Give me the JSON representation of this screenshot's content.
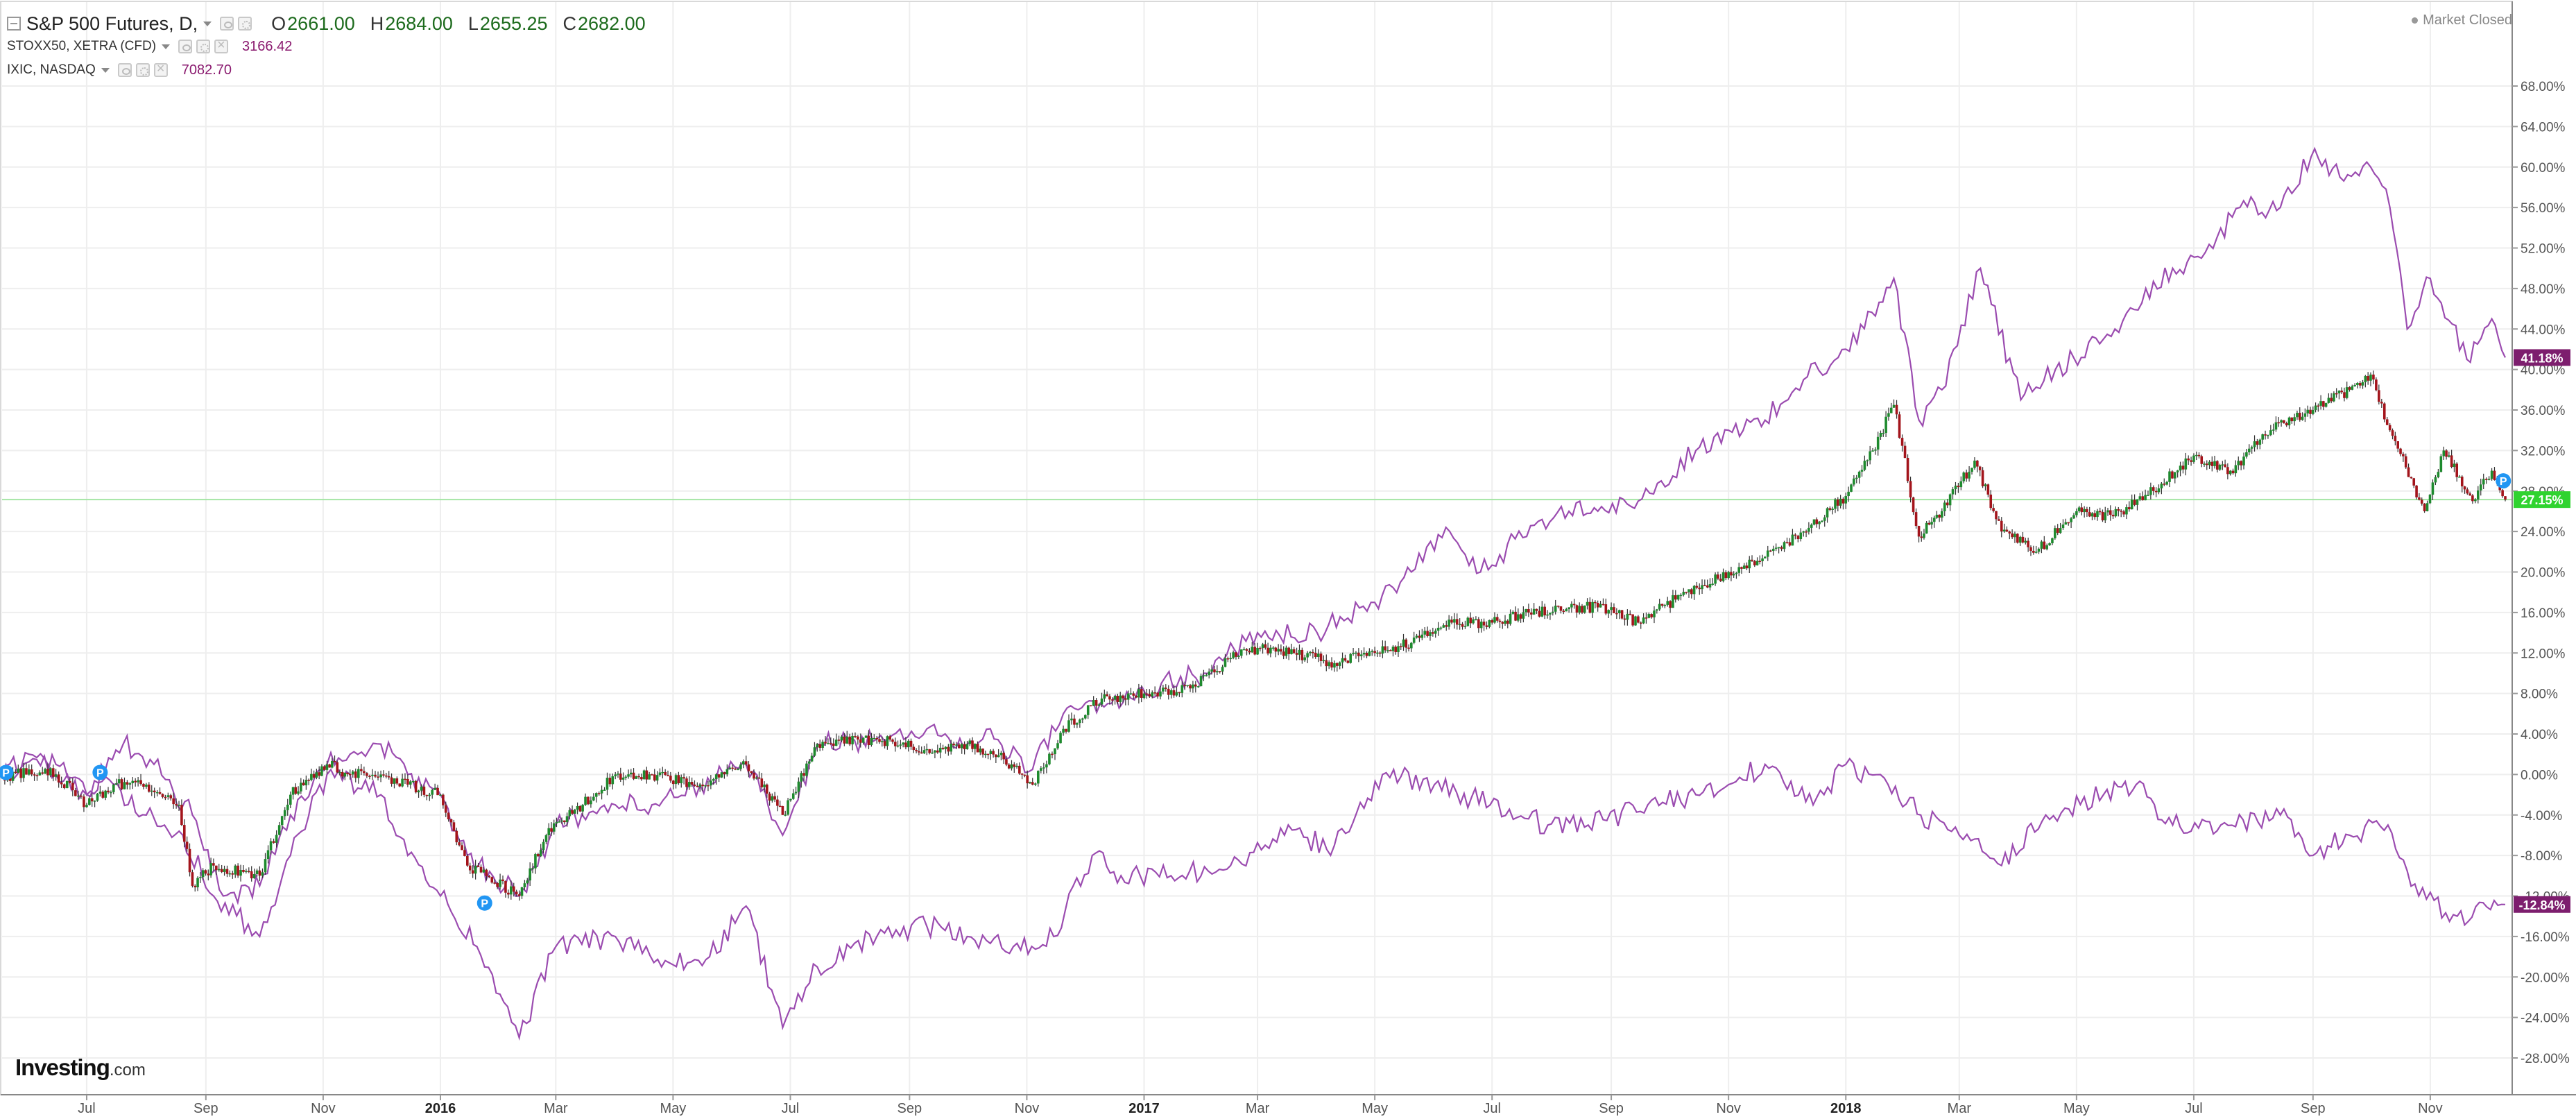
{
  "header": {
    "title": "S&P 500 Futures, D,",
    "open_label": "O",
    "open": "2661.00",
    "high_label": "H",
    "high": "2684.00",
    "low_label": "L",
    "low": "2655.25",
    "close_label": "C",
    "close": "2682.00"
  },
  "compare": [
    {
      "name": "STOXX50, XETRA (CFD)",
      "value": "3166.42"
    },
    {
      "name": "IXIC, NASDAQ",
      "value": "7082.70"
    }
  ],
  "status": {
    "market": "Market Closed"
  },
  "brand": {
    "name": "Investing",
    "suffix": ".com"
  },
  "colors": {
    "up": "#1e8a2e",
    "down": "#a3141b",
    "compare_line": "#9b4cb0",
    "ref_line": "#a4e6a4",
    "badge_green": "#2fd32f",
    "badge_purple": "#7d1e6e",
    "marker": "#2196f3",
    "grid": "#eeeeee",
    "axis_text": "#555555"
  },
  "icons": [
    "collapse-icon",
    "caret-down-icon",
    "eye-icon",
    "gear-icon",
    "close-icon",
    "status-dot-icon",
    "p-marker-icon"
  ],
  "chart_data": {
    "type": "line",
    "series_types": {
      "main": "candlestick",
      "compare": "line"
    },
    "y_axis": {
      "unit": "%",
      "range": [
        -30,
        70
      ],
      "ticks": [
        68,
        64,
        60,
        56,
        52,
        48,
        44,
        40,
        36,
        32,
        28,
        24,
        20,
        16,
        12,
        8,
        4,
        0,
        -4,
        -8,
        -12,
        -16,
        -20,
        -24,
        -28
      ],
      "tick_labels": [
        "68.00%",
        "64.00%",
        "60.00%",
        "56.00%",
        "52.00%",
        "48.00%",
        "44.00%",
        "40.00%",
        "36.00%",
        "32.00%",
        "28.00%",
        "24.00%",
        "20.00%",
        "16.00%",
        "12.00%",
        "8.00%",
        "4.00%",
        "0.00%",
        "-4.00%",
        "-8.00%",
        "-12.00%",
        "-16.00%",
        "-20.00%",
        "-24.00%",
        "-28.00%"
      ]
    },
    "x_axis": {
      "range": [
        "2015-05-18",
        "2018-12-10"
      ],
      "ticks": [
        {
          "date": "2015-07-01",
          "label": "Jul",
          "bold": false
        },
        {
          "date": "2015-09-01",
          "label": "Sep",
          "bold": false
        },
        {
          "date": "2015-11-01",
          "label": "Nov",
          "bold": false
        },
        {
          "date": "2016-01-01",
          "label": "2016",
          "bold": true
        },
        {
          "date": "2016-03-01",
          "label": "Mar",
          "bold": false
        },
        {
          "date": "2016-05-01",
          "label": "May",
          "bold": false
        },
        {
          "date": "2016-07-01",
          "label": "Jul",
          "bold": false
        },
        {
          "date": "2016-09-01",
          "label": "Sep",
          "bold": false
        },
        {
          "date": "2016-11-01",
          "label": "Nov",
          "bold": false
        },
        {
          "date": "2017-01-01",
          "label": "2017",
          "bold": true
        },
        {
          "date": "2017-03-01",
          "label": "Mar",
          "bold": false
        },
        {
          "date": "2017-05-01",
          "label": "May",
          "bold": false
        },
        {
          "date": "2017-07-01",
          "label": "Jul",
          "bold": false
        },
        {
          "date": "2017-09-01",
          "label": "Sep",
          "bold": false
        },
        {
          "date": "2017-11-01",
          "label": "Nov",
          "bold": false
        },
        {
          "date": "2018-01-01",
          "label": "2018",
          "bold": true
        },
        {
          "date": "2018-03-01",
          "label": "Mar",
          "bold": false
        },
        {
          "date": "2018-05-01",
          "label": "May",
          "bold": false
        },
        {
          "date": "2018-07-01",
          "label": "Jul",
          "bold": false
        },
        {
          "date": "2018-09-01",
          "label": "Sep",
          "bold": false
        },
        {
          "date": "2018-11-01",
          "label": "Nov",
          "bold": false
        }
      ]
    },
    "grid": true,
    "reference_line": {
      "value": 27.15,
      "label": "27.15%"
    },
    "badges": [
      {
        "series": "IXIC, NASDAQ",
        "value": 41.18,
        "label": "41.18%"
      },
      {
        "series": "S&P 500 Futures, D,",
        "value": 27.15,
        "label": "27.15%"
      },
      {
        "series": "STOXX50, XETRA (CFD)",
        "value": -12.84,
        "label": "-12.84%"
      }
    ],
    "markers": [
      {
        "date": "2015-05-20",
        "value": 0.2,
        "label": "P"
      },
      {
        "date": "2015-07-08",
        "value": 0.2,
        "label": "P"
      },
      {
        "date": "2016-01-24",
        "value": -12.7,
        "label": "P"
      },
      {
        "date": "2018-12-09",
        "value": 29.0,
        "label": "P"
      }
    ],
    "series": [
      {
        "name": "S&P 500 Futures, D,",
        "kind": "candlestick",
        "x": [
          "2015-05-18",
          "2015-06-01",
          "2015-06-15",
          "2015-07-01",
          "2015-07-15",
          "2015-08-01",
          "2015-08-18",
          "2015-08-25",
          "2015-09-05",
          "2015-09-29",
          "2015-10-15",
          "2015-11-03",
          "2015-11-15",
          "2015-12-01",
          "2015-12-15",
          "2016-01-01",
          "2016-01-15",
          "2016-02-11",
          "2016-02-25",
          "2016-03-15",
          "2016-04-01",
          "2016-04-20",
          "2016-05-15",
          "2016-06-08",
          "2016-06-27",
          "2016-07-15",
          "2016-08-15",
          "2016-09-10",
          "2016-10-01",
          "2016-10-20",
          "2016-11-04",
          "2016-11-20",
          "2016-12-10",
          "2017-01-01",
          "2017-01-25",
          "2017-02-15",
          "2017-03-01",
          "2017-03-20",
          "2017-04-10",
          "2017-05-01",
          "2017-05-20",
          "2017-06-10",
          "2017-07-01",
          "2017-07-20",
          "2017-08-10",
          "2017-08-25",
          "2017-09-15",
          "2017-10-10",
          "2017-11-01",
          "2017-11-20",
          "2017-12-10",
          "2018-01-01",
          "2018-01-15",
          "2018-01-26",
          "2018-02-08",
          "2018-02-20",
          "2018-03-09",
          "2018-03-23",
          "2018-04-10",
          "2018-05-01",
          "2018-05-20",
          "2018-06-10",
          "2018-07-01",
          "2018-07-20",
          "2018-08-10",
          "2018-09-01",
          "2018-09-20",
          "2018-10-01",
          "2018-10-11",
          "2018-10-29",
          "2018-11-08",
          "2018-11-23",
          "2018-12-03",
          "2018-12-10"
        ],
        "y": [
          -0.5,
          0.5,
          0,
          -3,
          -1,
          -1,
          -3,
          -11,
          -9,
          -10,
          -2,
          1,
          0,
          0,
          -1,
          -2,
          -9,
          -12,
          -6,
          -3,
          0,
          0,
          -1,
          1,
          -4,
          3,
          3.5,
          2.5,
          3,
          1.5,
          -1,
          4.5,
          7.5,
          8,
          8.5,
          11.5,
          12.5,
          12,
          11,
          12,
          13,
          15,
          15,
          16,
          16.5,
          16.5,
          15,
          18,
          20,
          21.5,
          24,
          27.5,
          32,
          36.5,
          23.5,
          26,
          31,
          24,
          22,
          26,
          25.5,
          28,
          31.5,
          30,
          34,
          36,
          38,
          39.5,
          34,
          26,
          32,
          27,
          30,
          27.15
        ]
      },
      {
        "name": "STOXX50, XETRA (CFD)",
        "kind": "line",
        "x": [
          "2015-05-18",
          "2015-06-01",
          "2015-06-15",
          "2015-07-01",
          "2015-07-15",
          "2015-08-01",
          "2015-08-20",
          "2015-09-05",
          "2015-09-29",
          "2015-10-15",
          "2015-11-03",
          "2015-12-01",
          "2015-12-15",
          "2016-01-01",
          "2016-01-20",
          "2016-02-11",
          "2016-03-01",
          "2016-04-01",
          "2016-04-25",
          "2016-05-20",
          "2016-06-08",
          "2016-06-27",
          "2016-07-15",
          "2016-08-15",
          "2016-09-10",
          "2016-10-01",
          "2016-10-25",
          "2016-11-15",
          "2016-12-05",
          "2016-12-20",
          "2017-01-15",
          "2017-02-15",
          "2017-03-15",
          "2017-04-10",
          "2017-05-05",
          "2017-06-01",
          "2017-06-30",
          "2017-07-30",
          "2017-08-20",
          "2017-09-20",
          "2017-10-15",
          "2017-11-01",
          "2017-11-20",
          "2017-12-15",
          "2018-01-01",
          "2018-01-23",
          "2018-02-09",
          "2018-03-01",
          "2018-03-23",
          "2018-04-15",
          "2018-05-15",
          "2018-06-01",
          "2018-06-20",
          "2018-07-15",
          "2018-08-15",
          "2018-09-01",
          "2018-09-20",
          "2018-10-10",
          "2018-10-26",
          "2018-11-15",
          "2018-12-10"
        ],
        "y": [
          0,
          2,
          0,
          -2,
          -1,
          -4,
          -6,
          -12,
          -16,
          -8,
          0,
          -2,
          -8,
          -12,
          -17,
          -26,
          -17,
          -16,
          -19,
          -18,
          -13,
          -25,
          -19,
          -16,
          -15,
          -16,
          -17,
          -16,
          -8,
          -10,
          -10,
          -9,
          -6,
          -7,
          0,
          -1,
          -3,
          -5,
          -5,
          -3,
          -2,
          -1,
          1,
          -3,
          1,
          -1,
          -4,
          -6,
          -9,
          -4,
          -2,
          -1,
          -5,
          -5,
          -4,
          -8,
          -6,
          -5,
          -12,
          -14,
          -12.84
        ]
      },
      {
        "name": "IXIC, NASDAQ",
        "kind": "line",
        "x": [
          "2015-05-18",
          "2015-06-15",
          "2015-07-01",
          "2015-07-20",
          "2015-08-05",
          "2015-08-25",
          "2015-09-10",
          "2015-09-29",
          "2015-10-15",
          "2015-11-03",
          "2015-11-15",
          "2015-12-01",
          "2015-12-15",
          "2016-01-01",
          "2016-01-15",
          "2016-02-11",
          "2016-03-01",
          "2016-04-01",
          "2016-04-20",
          "2016-05-15",
          "2016-06-08",
          "2016-06-27",
          "2016-07-15",
          "2016-08-15",
          "2016-09-10",
          "2016-10-01",
          "2016-10-15",
          "2016-11-04",
          "2016-11-20",
          "2016-12-15",
          "2017-01-10",
          "2017-02-01",
          "2017-03-01",
          "2017-04-01",
          "2017-05-01",
          "2017-05-20",
          "2017-06-09",
          "2017-06-25",
          "2017-07-25",
          "2017-08-10",
          "2017-08-25",
          "2017-09-15",
          "2017-10-15",
          "2017-11-01",
          "2017-11-20",
          "2017-12-10",
          "2018-01-01",
          "2018-01-26",
          "2018-02-08",
          "2018-02-20",
          "2018-03-12",
          "2018-04-02",
          "2018-04-20",
          "2018-05-15",
          "2018-06-20",
          "2018-07-05",
          "2018-07-25",
          "2018-08-15",
          "2018-08-31",
          "2018-09-15",
          "2018-10-01",
          "2018-10-11",
          "2018-10-20",
          "2018-11-01",
          "2018-11-20",
          "2018-12-03",
          "2018-12-10"
        ],
        "y": [
          0,
          1,
          -2,
          3,
          1,
          -4,
          -12,
          -11,
          -4,
          1,
          2,
          3,
          0,
          -2,
          -8,
          -12,
          -5,
          -3,
          -3,
          -1,
          1,
          -6,
          3,
          3.5,
          4.5,
          3,
          3.5,
          0.5,
          6,
          7,
          9,
          10,
          14,
          14,
          17,
          20,
          24,
          20,
          25,
          26,
          26,
          27,
          32,
          34,
          35,
          39,
          42,
          49,
          35,
          38,
          50,
          37,
          40,
          43,
          50,
          51,
          56,
          56,
          61,
          59,
          60,
          56,
          44,
          49,
          41,
          45,
          41.18
        ]
      }
    ]
  }
}
